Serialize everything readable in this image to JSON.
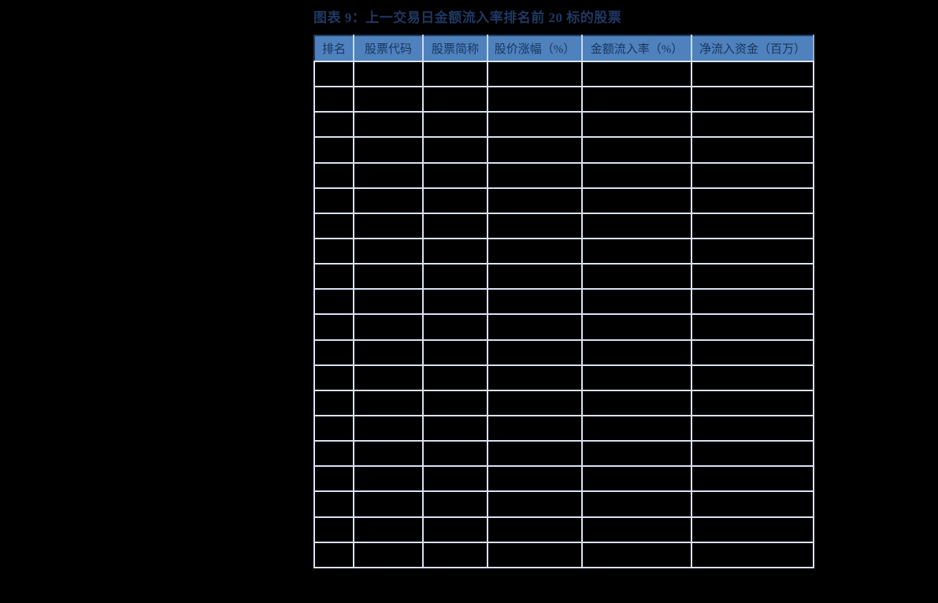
{
  "figure": {
    "title": "图表 9：上一交易日金额流入率排名前 20 标的股票"
  },
  "table": {
    "columns": [
      "排名",
      "股票代码",
      "股票简称",
      "股价涨幅（%）",
      "金额流入率（%）",
      "净流入资金（百万）"
    ],
    "row_count": 20,
    "rows": [
      [
        "",
        "",
        "",
        "",
        "",
        ""
      ],
      [
        "",
        "",
        "",
        "",
        "",
        ""
      ],
      [
        "",
        "",
        "",
        "",
        "",
        ""
      ],
      [
        "",
        "",
        "",
        "",
        "",
        ""
      ],
      [
        "",
        "",
        "",
        "",
        "",
        ""
      ],
      [
        "",
        "",
        "",
        "",
        "",
        ""
      ],
      [
        "",
        "",
        "",
        "",
        "",
        ""
      ],
      [
        "",
        "",
        "",
        "",
        "",
        ""
      ],
      [
        "",
        "",
        "",
        "",
        "",
        ""
      ],
      [
        "",
        "",
        "",
        "",
        "",
        ""
      ],
      [
        "",
        "",
        "",
        "",
        "",
        ""
      ],
      [
        "",
        "",
        "",
        "",
        "",
        ""
      ],
      [
        "",
        "",
        "",
        "",
        "",
        ""
      ],
      [
        "",
        "",
        "",
        "",
        "",
        ""
      ],
      [
        "",
        "",
        "",
        "",
        "",
        ""
      ],
      [
        "",
        "",
        "",
        "",
        "",
        ""
      ],
      [
        "",
        "",
        "",
        "",
        "",
        ""
      ],
      [
        "",
        "",
        "",
        "",
        "",
        ""
      ],
      [
        "",
        "",
        "",
        "",
        "",
        ""
      ],
      [
        "",
        "",
        "",
        "",
        "",
        ""
      ]
    ]
  },
  "chart_data": {
    "type": "table",
    "title": "图表 9：上一交易日金额流入率排名前 20 标的股票",
    "columns": [
      "排名",
      "股票代码",
      "股票简称",
      "股价涨幅（%）",
      "金额流入率（%）",
      "净流入资金（百万）"
    ],
    "rows": [
      [
        "",
        "",
        "",
        "",
        "",
        ""
      ],
      [
        "",
        "",
        "",
        "",
        "",
        ""
      ],
      [
        "",
        "",
        "",
        "",
        "",
        ""
      ],
      [
        "",
        "",
        "",
        "",
        "",
        ""
      ],
      [
        "",
        "",
        "",
        "",
        "",
        ""
      ],
      [
        "",
        "",
        "",
        "",
        "",
        ""
      ],
      [
        "",
        "",
        "",
        "",
        "",
        ""
      ],
      [
        "",
        "",
        "",
        "",
        "",
        ""
      ],
      [
        "",
        "",
        "",
        "",
        "",
        ""
      ],
      [
        "",
        "",
        "",
        "",
        "",
        ""
      ],
      [
        "",
        "",
        "",
        "",
        "",
        ""
      ],
      [
        "",
        "",
        "",
        "",
        "",
        ""
      ],
      [
        "",
        "",
        "",
        "",
        "",
        ""
      ],
      [
        "",
        "",
        "",
        "",
        "",
        ""
      ],
      [
        "",
        "",
        "",
        "",
        "",
        ""
      ],
      [
        "",
        "",
        "",
        "",
        "",
        ""
      ],
      [
        "",
        "",
        "",
        "",
        "",
        ""
      ],
      [
        "",
        "",
        "",
        "",
        "",
        ""
      ],
      [
        "",
        "",
        "",
        "",
        "",
        ""
      ],
      [
        "",
        "",
        "",
        "",
        "",
        ""
      ]
    ],
    "notes": "表体单元格在截图中为空（黑色背景，仅显示浅色网格线）"
  },
  "colors": {
    "page_background": "#000000",
    "title_text": "#1F3864",
    "header_background": "#4F81BD",
    "header_text": "#17365D",
    "cell_background": "#000000",
    "grid_border": "#D9E2F3"
  }
}
